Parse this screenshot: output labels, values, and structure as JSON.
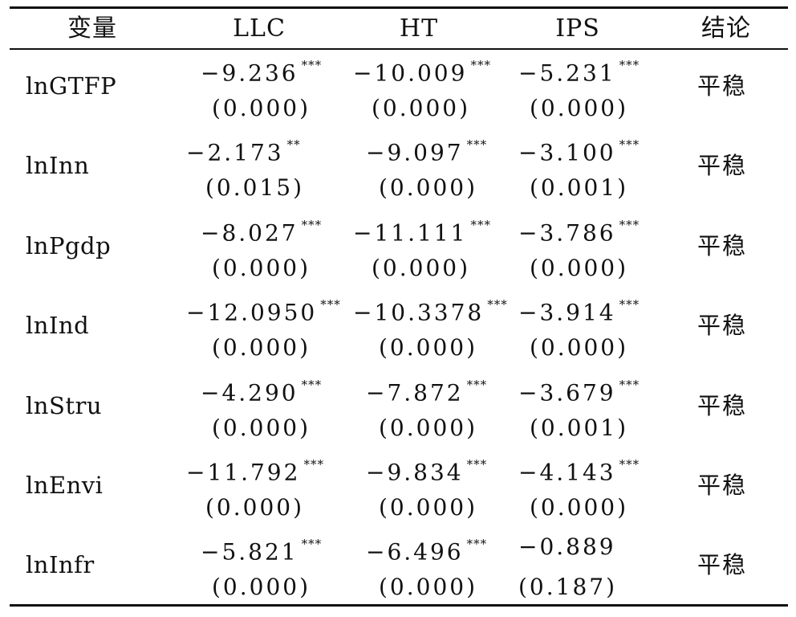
{
  "header": {
    "variable": "变量",
    "llc": "LLC",
    "ht": "HT",
    "ips": "IPS",
    "conclusion": "结论"
  },
  "rows": [
    {
      "name": "lnGTFP",
      "llc": {
        "coef": "−9.236",
        "stars": "***",
        "p": "(0.000)"
      },
      "ht": {
        "coef": "−10.009",
        "stars": "***",
        "p": "(0.000)"
      },
      "ips": {
        "coef": "−5.231",
        "stars": "***",
        "p": "(0.000)"
      },
      "conclusion": "平稳"
    },
    {
      "name": "lnInn",
      "llc": {
        "coef": "−2.173",
        "stars": "**",
        "p": "(0.015)"
      },
      "ht": {
        "coef": "−9.097",
        "stars": "***",
        "p": "(0.000)"
      },
      "ips": {
        "coef": "−3.100",
        "stars": "***",
        "p": "(0.001)"
      },
      "conclusion": "平稳"
    },
    {
      "name": "lnPgdp",
      "llc": {
        "coef": "−8.027",
        "stars": "***",
        "p": "(0.000)"
      },
      "ht": {
        "coef": "−11.111",
        "stars": "***",
        "p": "(0.000)"
      },
      "ips": {
        "coef": "−3.786",
        "stars": "***",
        "p": "(0.000)"
      },
      "conclusion": "平稳"
    },
    {
      "name": "lnInd",
      "llc": {
        "coef": "−12.0950",
        "stars": "***",
        "p": "(0.000)"
      },
      "ht": {
        "coef": "−10.3378",
        "stars": "***",
        "p": "(0.000)"
      },
      "ips": {
        "coef": "−3.914",
        "stars": "***",
        "p": "(0.000)"
      },
      "conclusion": "平稳"
    },
    {
      "name": "lnStru",
      "llc": {
        "coef": "−4.290",
        "stars": "***",
        "p": "(0.000)"
      },
      "ht": {
        "coef": "−7.872",
        "stars": "***",
        "p": "(0.000)"
      },
      "ips": {
        "coef": "−3.679",
        "stars": "***",
        "p": "(0.001)"
      },
      "conclusion": "平稳"
    },
    {
      "name": "lnEnvi",
      "llc": {
        "coef": "−11.792",
        "stars": "***",
        "p": "(0.000)"
      },
      "ht": {
        "coef": "−9.834",
        "stars": "***",
        "p": "(0.000)"
      },
      "ips": {
        "coef": "−4.143",
        "stars": "***",
        "p": "(0.000)"
      },
      "conclusion": "平稳"
    },
    {
      "name": "lnInfr",
      "llc": {
        "coef": "−5.821",
        "stars": "***",
        "p": "(0.000)"
      },
      "ht": {
        "coef": "−6.496",
        "stars": "***",
        "p": "(0.000)"
      },
      "ips": {
        "coef": "−0.889",
        "stars": "",
        "p": "(0.187)"
      },
      "conclusion": "平稳"
    }
  ]
}
